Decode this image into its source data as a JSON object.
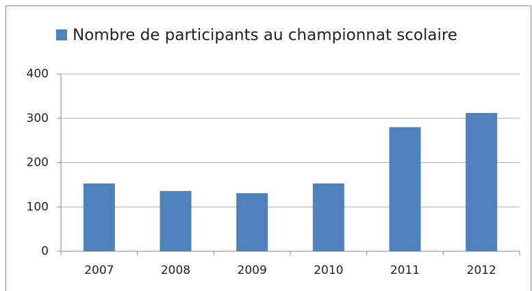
{
  "chart_data": {
    "type": "bar",
    "categories": [
      "2007",
      "2008",
      "2009",
      "2010",
      "2011",
      "2012"
    ],
    "series": [
      {
        "name": "Nombre de participants au championnat scolaire",
        "color": "#4f81bd",
        "values": [
          153,
          136,
          131,
          153,
          280,
          312
        ]
      }
    ],
    "ylim": [
      0,
      400
    ],
    "yticks": [
      0,
      100,
      200,
      300,
      400
    ],
    "grid": true,
    "legend": "top"
  }
}
